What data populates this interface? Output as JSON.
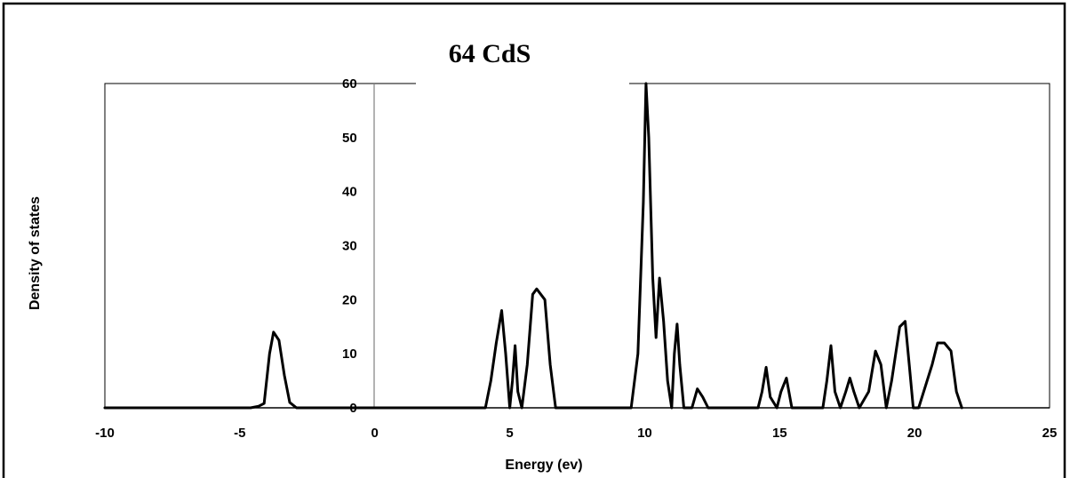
{
  "chart_data": {
    "type": "line",
    "title": "64 CdS",
    "xlabel": "Energy (ev)",
    "ylabel": "Density of states",
    "xlim": [
      -10,
      25
    ],
    "ylim": [
      0,
      60
    ],
    "x_ticks": [
      "-10",
      "-5",
      "0",
      "5",
      "10",
      "15",
      "20",
      "25"
    ],
    "y_ticks": [
      "0",
      "10",
      "20",
      "30",
      "40",
      "50",
      "60"
    ],
    "grid": false,
    "legend": "none",
    "series": [
      {
        "x": [
          -10,
          -4.6,
          -4.3,
          -4.1,
          -3.9,
          -3.75,
          -3.55,
          -3.35,
          -3.15,
          -2.9,
          4.1,
          4.3,
          4.5,
          4.7,
          4.85,
          5.0,
          5.1,
          5.2,
          5.3,
          5.45,
          5.65,
          5.85,
          6.0,
          6.3,
          6.5,
          6.7,
          9.5,
          9.75,
          9.95,
          10.05,
          10.15,
          10.3,
          10.42,
          10.55,
          10.7,
          10.85,
          11.0,
          11.1,
          11.2,
          11.3,
          11.45,
          11.75,
          11.95,
          12.15,
          12.35,
          14.2,
          14.35,
          14.5,
          14.65,
          14.9,
          15.05,
          15.25,
          15.45,
          16.6,
          16.75,
          16.9,
          17.05,
          17.25,
          17.45,
          17.6,
          17.75,
          17.95,
          18.3,
          18.55,
          18.75,
          18.95,
          19.15,
          19.45,
          19.65,
          19.8,
          19.95,
          20.15,
          20.65,
          20.85,
          21.1,
          21.35,
          21.55,
          21.75
        ],
        "y": [
          0,
          0,
          0.3,
          0.8,
          10,
          14,
          12.5,
          6,
          1,
          0,
          0,
          5,
          12,
          18,
          10,
          0,
          5,
          11.5,
          3,
          0,
          8,
          21,
          22,
          20,
          8,
          0,
          0,
          10,
          38,
          60,
          50,
          24,
          13,
          24,
          16,
          5,
          0,
          10,
          15.5,
          8,
          0,
          0,
          3.5,
          2,
          0,
          0,
          3,
          7.5,
          2,
          0,
          3,
          5.5,
          0,
          0,
          5,
          11.5,
          3,
          0,
          3,
          5.5,
          3,
          0,
          3,
          10.5,
          8,
          0,
          5,
          15,
          16,
          8,
          0,
          0,
          8,
          12,
          12,
          10.5,
          3,
          0
        ]
      }
    ]
  }
}
